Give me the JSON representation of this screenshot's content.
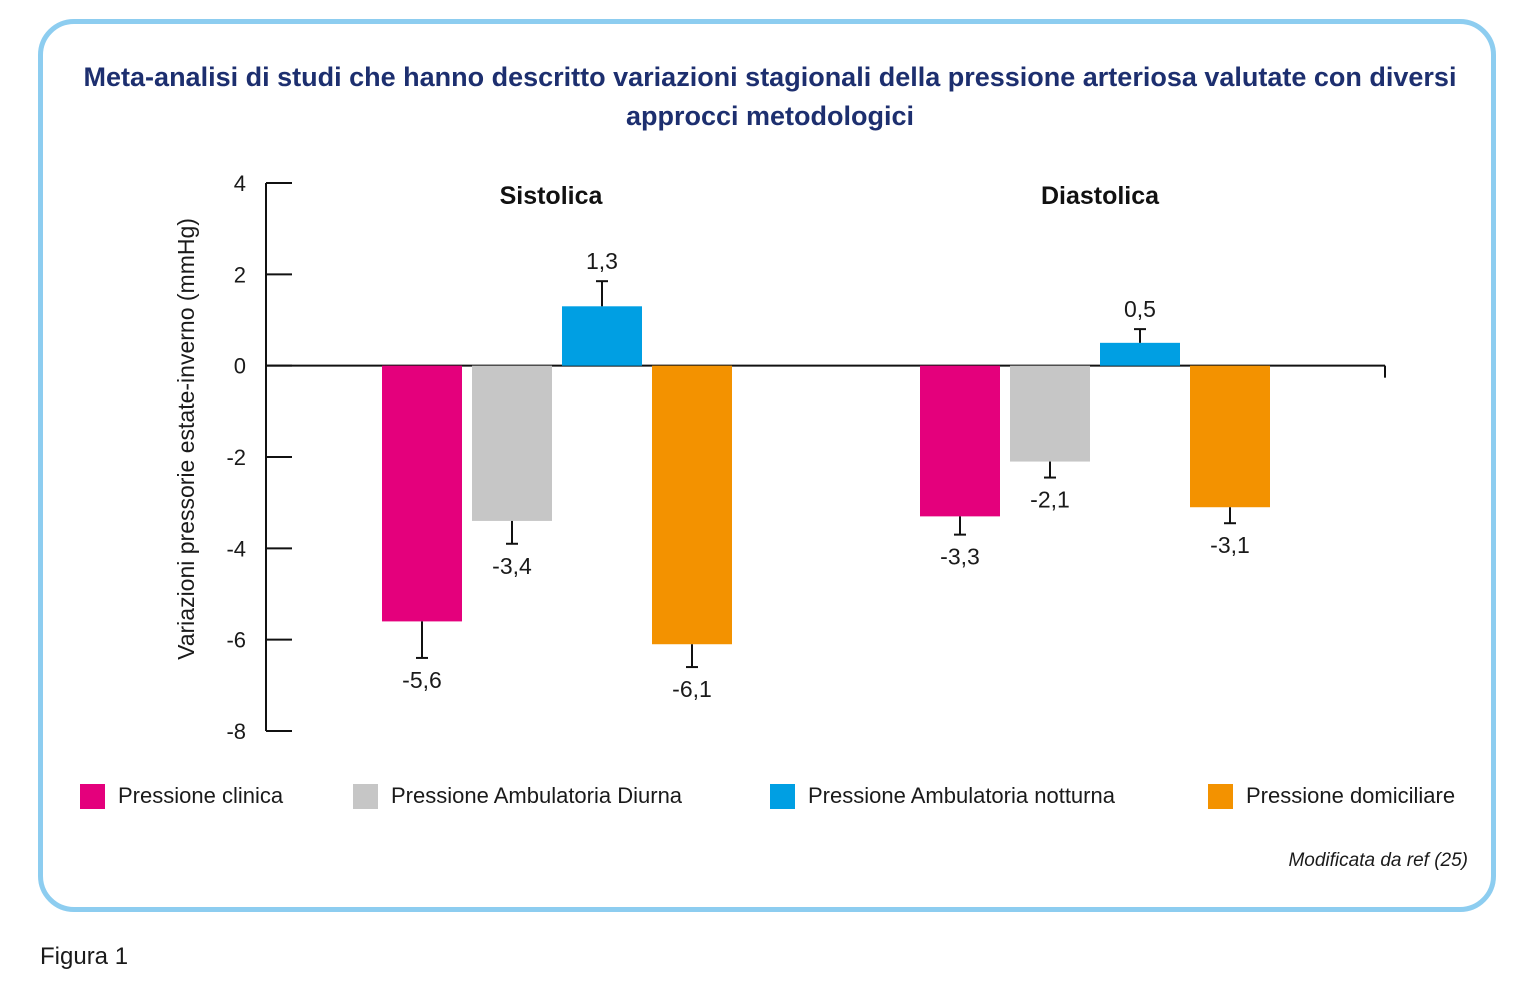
{
  "title": "Meta-analisi di studi che hanno descritto variazioni stagionali della pressione arteriosa valutate con diversi approcci metodologici",
  "chart_data": {
    "type": "bar",
    "ylabel": "Variazioni pressorie estate-inverno (mmHg)",
    "ylim": [
      -8,
      4
    ],
    "yticks": [
      4,
      2,
      0,
      -2,
      -4,
      -6,
      -8
    ],
    "categories": [
      "Sistolica",
      "Diastolica"
    ],
    "series": [
      {
        "name": "Pressione clinica",
        "color": "#e4007c",
        "values": [
          -5.6,
          -3.3
        ],
        "errors": [
          0.8,
          0.4
        ],
        "labels": [
          "-5,6",
          "-3,3"
        ]
      },
      {
        "name": "Pressione Ambulatoria Diurna",
        "color": "#c6c6c6",
        "values": [
          -3.4,
          -2.1
        ],
        "errors": [
          0.5,
          0.35
        ],
        "labels": [
          "-3,4",
          "-2,1"
        ]
      },
      {
        "name": "Pressione Ambulatoria notturna",
        "color": "#009fe3",
        "values": [
          1.3,
          0.5
        ],
        "errors": [
          0.55,
          0.3
        ],
        "labels": [
          "1,3",
          "0,5"
        ]
      },
      {
        "name": "Pressione domiciliare",
        "color": "#f39200",
        "values": [
          -6.1,
          -3.1
        ],
        "errors": [
          0.5,
          0.35
        ],
        "labels": [
          "-6,1",
          "-3,1"
        ]
      }
    ],
    "grid": false,
    "legend_position": "bottom"
  },
  "source": "Modificata da ref (25)",
  "caption": "Figura 1"
}
